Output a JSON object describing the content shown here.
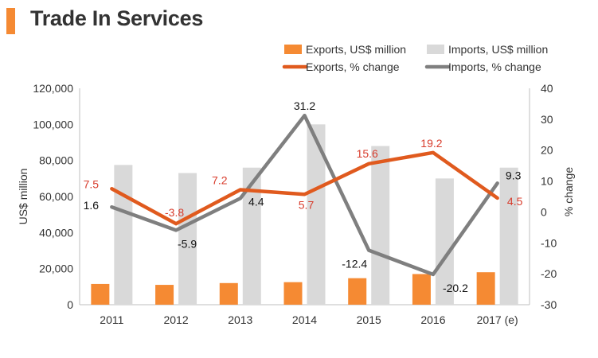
{
  "chart_data": {
    "type": "bar",
    "title": "Trade In Services",
    "categories": [
      "2011",
      "2012",
      "2013",
      "2014",
      "2015",
      "2016",
      "2017 (e)"
    ],
    "series": [
      {
        "name": "Exports, US$ million",
        "type": "bar",
        "axis": "left",
        "color": "#f58a33",
        "values": [
          11500,
          11000,
          12000,
          12500,
          14700,
          17000,
          18000
        ]
      },
      {
        "name": "Imports, US$ million",
        "type": "bar",
        "axis": "left",
        "color": "#d9d9d9",
        "values": [
          77500,
          73000,
          76000,
          100000,
          88000,
          70000,
          76000
        ]
      },
      {
        "name": "Exports, % change",
        "type": "line",
        "axis": "right",
        "color": "#e05a1e",
        "label_color": "#d83c2c",
        "values": [
          7.5,
          -3.8,
          7.2,
          5.7,
          15.6,
          19.2,
          4.5
        ],
        "labels": [
          "7.5",
          "-3.8",
          "7.2",
          "5.7",
          "15.6",
          "19.2",
          "4.5"
        ]
      },
      {
        "name": "Imports, % change",
        "type": "line",
        "axis": "right",
        "color": "#7f7f7f",
        "label_color": "#111111",
        "values": [
          1.6,
          -5.9,
          4.4,
          31.2,
          -12.4,
          -20.2,
          9.3
        ],
        "labels": [
          "1.6",
          "-5.9",
          "4.4",
          "31.2",
          "-12.4",
          "-20.2",
          "9.3"
        ]
      }
    ],
    "ylabel": "US$ million",
    "y2label": "% change",
    "ylim": [
      0,
      120000
    ],
    "y2lim": [
      -30,
      40
    ],
    "yticks": [
      "0",
      "20,000",
      "40,000",
      "60,000",
      "80,000",
      "100,000",
      "120,000"
    ],
    "y2ticks": [
      "-30",
      "-20",
      "-10",
      "0",
      "10",
      "20",
      "30",
      "40"
    ],
    "grid": false,
    "legend": "top-right"
  }
}
